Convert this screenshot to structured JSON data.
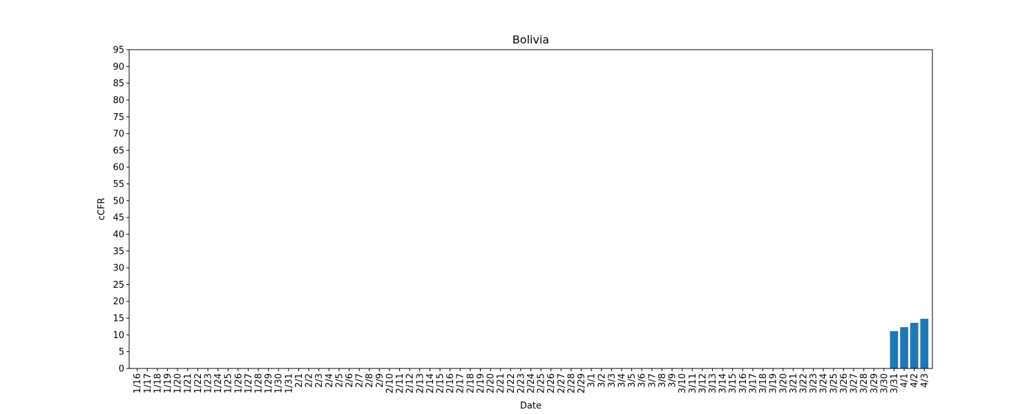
{
  "chart_data": {
    "type": "bar",
    "title": "Bolivia",
    "xlabel": "Date",
    "ylabel": "cCFR",
    "ylim": [
      0,
      95
    ],
    "yticks": [
      0,
      5,
      10,
      15,
      20,
      25,
      30,
      35,
      40,
      45,
      50,
      55,
      60,
      65,
      70,
      75,
      80,
      85,
      90,
      95
    ],
    "bar_color": "#1f77b4",
    "grid": false,
    "categories": [
      "1/16",
      "1/17",
      "1/18",
      "1/19",
      "1/20",
      "1/21",
      "1/22",
      "1/23",
      "1/24",
      "1/25",
      "1/26",
      "1/27",
      "1/28",
      "1/29",
      "1/30",
      "1/31",
      "2/1",
      "2/2",
      "2/3",
      "2/4",
      "2/5",
      "2/6",
      "2/7",
      "2/8",
      "2/9",
      "2/10",
      "2/11",
      "2/12",
      "2/13",
      "2/14",
      "2/15",
      "2/16",
      "2/17",
      "2/18",
      "2/19",
      "2/20",
      "2/21",
      "2/22",
      "2/23",
      "2/24",
      "2/25",
      "2/26",
      "2/27",
      "2/28",
      "2/29",
      "3/1",
      "3/2",
      "3/3",
      "3/4",
      "3/5",
      "3/6",
      "3/7",
      "3/8",
      "3/9",
      "3/10",
      "3/11",
      "3/12",
      "3/13",
      "3/14",
      "3/15",
      "3/16",
      "3/17",
      "3/18",
      "3/19",
      "3/20",
      "3/21",
      "3/22",
      "3/23",
      "3/24",
      "3/25",
      "3/26",
      "3/27",
      "3/28",
      "3/29",
      "3/30",
      "3/31",
      "4/1",
      "4/2",
      "4/3"
    ],
    "values": [
      0,
      0,
      0,
      0,
      0,
      0,
      0,
      0,
      0,
      0,
      0,
      0,
      0,
      0,
      0,
      0,
      0,
      0,
      0,
      0,
      0,
      0,
      0,
      0,
      0,
      0,
      0,
      0,
      0,
      0,
      0,
      0,
      0,
      0,
      0,
      0,
      0,
      0,
      0,
      0,
      0,
      0,
      0,
      0,
      0,
      0,
      0,
      0,
      0,
      0,
      0,
      0,
      0,
      0,
      0,
      0,
      0,
      0,
      0,
      0,
      0,
      0,
      0,
      0,
      0,
      0,
      0,
      0,
      0,
      0,
      0,
      0,
      0,
      0,
      0,
      11.1,
      12.3,
      13.6,
      14.8
    ]
  }
}
